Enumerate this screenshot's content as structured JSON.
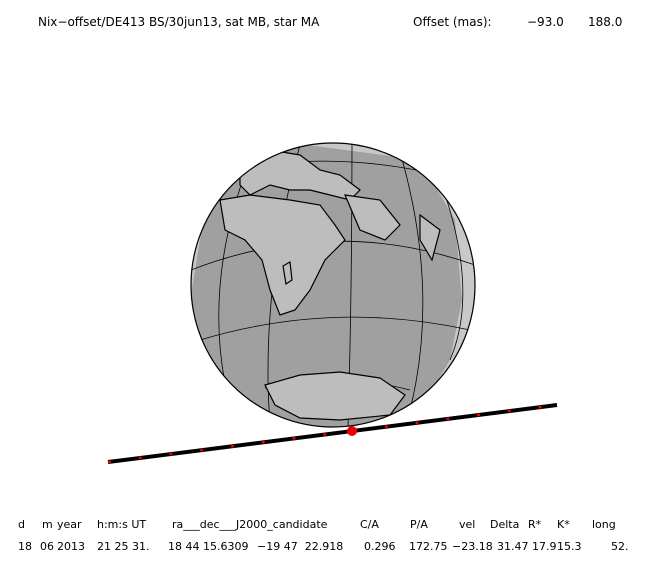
{
  "header": {
    "title": "Nix−offset/DE413 BS/30jun13, sat MB, star MA",
    "offset_label": "Offset (mas):",
    "offset_x": "−93.0",
    "offset_y": "188.0"
  },
  "table": {
    "headers": [
      "d",
      "m",
      "year",
      "h:m:s UT",
      "ra___dec___J2000_candidate",
      "C/A",
      "P/A",
      "vel",
      "Delta",
      "R*",
      "K*",
      "long"
    ],
    "rows": [
      [
        "18",
        "06",
        "2013",
        "21 25 31.",
        "18 44 15.6309",
        "−19 47  22.918",
        "0.296",
        "172.75",
        "−23.18",
        "31.47",
        "17.9",
        "15.3",
        "52."
      ]
    ]
  }
}
